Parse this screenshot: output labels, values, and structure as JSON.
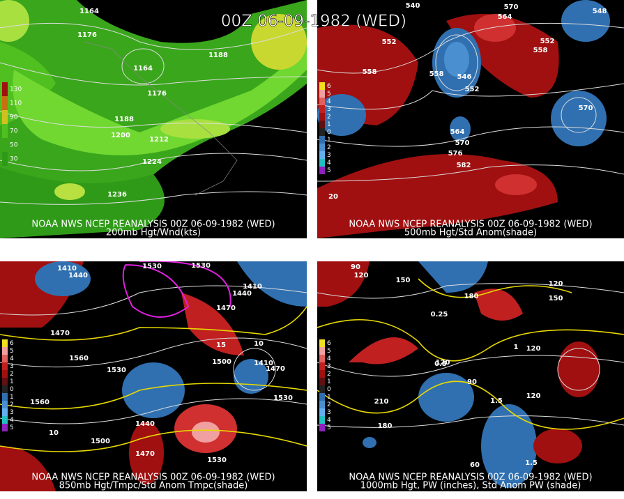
{
  "title": "00Z 06-09-1982 (WED)",
  "panels": [
    {
      "caption": "NOAA NWS NCEP REANALYSIS 00Z 06-09-1982 (WED)",
      "subtitle": "200mb Hgt/Wnd(kts)",
      "legend": [
        "130",
        "110",
        "90",
        "70",
        "50",
        "30"
      ],
      "labels": [
        "1164",
        "1176",
        "1188",
        "1164",
        "1176",
        "1188",
        "1200",
        "1212",
        "1224",
        "1236"
      ]
    },
    {
      "caption": "NOAA NWS NCEP REANALYSIS 00Z 06-09-1982 (WED)",
      "subtitle": "500mb Hgt/Std Anom(shade)",
      "legend": [
        "6",
        "5",
        "4",
        "3",
        "2",
        "1",
        "0",
        "1",
        "2",
        "3",
        "4",
        "5"
      ],
      "labels": [
        "540",
        "570",
        "552",
        "564",
        "558",
        "552",
        "558",
        "558",
        "546",
        "552",
        "564",
        "570",
        "576",
        "582",
        "570",
        "548",
        "20"
      ]
    },
    {
      "caption": "NOAA NWS NCEP REANALYSIS 00Z 06-09-1982 (WED)",
      "subtitle": "850mb Hgt/Tmpc/Std Anom Tmpc(shade)",
      "legend": [
        "6",
        "5",
        "4",
        "3",
        "2",
        "1",
        "0",
        "1",
        "2",
        "3",
        "4",
        "5"
      ],
      "labels": [
        "1410",
        "1440",
        "1530",
        "1530",
        "1470",
        "1560",
        "1530",
        "1500",
        "1410",
        "1470",
        "1530",
        "1560",
        "1440",
        "1500",
        "1470",
        "1530",
        "1410",
        "1440",
        "1470",
        "15",
        "10",
        "10"
      ]
    },
    {
      "caption": "NOAA NWS NCEP REANALYSIS 00Z 06-09-1982 (WED)",
      "subtitle": "1000mb Hgt, PW (inches), Std Anom PW (shade)",
      "legend": [
        "6",
        "5",
        "4",
        "3",
        "2",
        "1",
        "0",
        "1",
        "2",
        "3",
        "4",
        "5"
      ],
      "labels": [
        "90",
        "120",
        "150",
        "180",
        "120",
        "150",
        "120",
        "90",
        "120",
        "210",
        "180",
        "60",
        "120",
        "0.25",
        "0.5",
        "1.5",
        "1.5",
        "1"
      ]
    }
  ]
}
